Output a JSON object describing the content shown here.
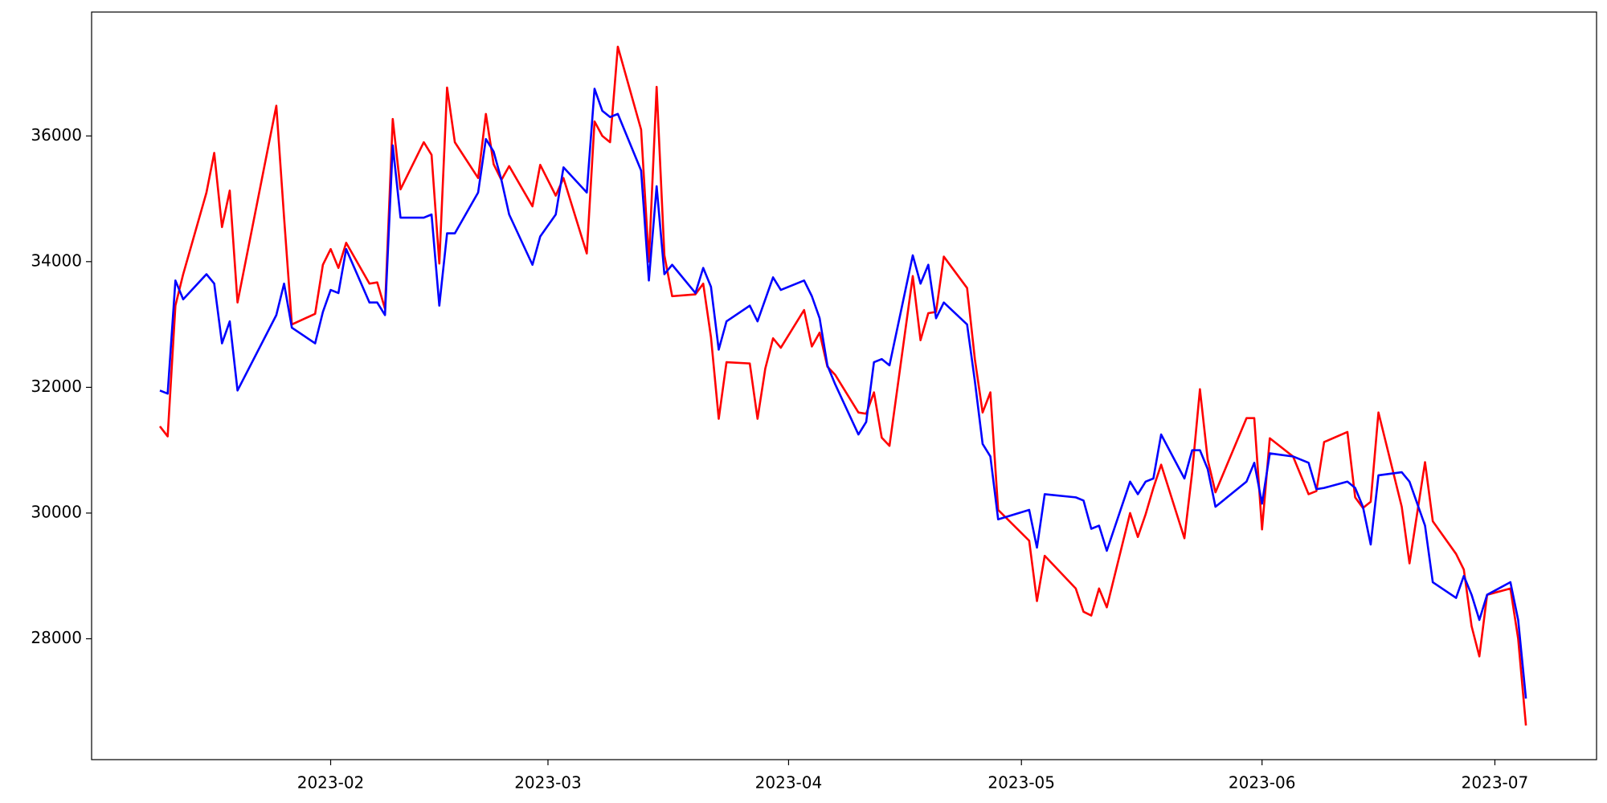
{
  "chart_data": {
    "type": "line",
    "x": [
      19367,
      19368,
      19369,
      19370,
      19373,
      19374,
      19375,
      19376,
      19377,
      19382,
      19383,
      19384,
      19387,
      19388,
      19389,
      19390,
      19391,
      19394,
      19395,
      19396,
      19397,
      19398,
      19401,
      19402,
      19403,
      19404,
      19405,
      19408,
      19409,
      19410,
      19411,
      19412,
      19415,
      19416,
      19418,
      19419,
      19422,
      19423,
      19424,
      19425,
      19426,
      19429,
      19430,
      19431,
      19432,
      19433,
      19436,
      19437,
      19438,
      19439,
      19440,
      19443,
      19444,
      19445,
      19446,
      19447,
      19450,
      19451,
      19452,
      19453,
      19454,
      19457,
      19458,
      19459,
      19460,
      19461,
      19464,
      19465,
      19466,
      19467,
      19468,
      19471,
      19472,
      19473,
      19474,
      19475,
      19479,
      19480,
      19481,
      19485,
      19486,
      19487,
      19488,
      19489,
      19492,
      19493,
      19494,
      19495,
      19496,
      19499,
      19500,
      19501,
      19502,
      19503,
      19507,
      19508,
      19509,
      19510,
      19513,
      19515,
      19516,
      19517,
      19520,
      19521,
      19522,
      19523,
      19524,
      19527,
      19528,
      19530,
      19531,
      19534,
      19535,
      19536,
      19537,
      19538,
      19541,
      19542,
      19543
    ],
    "series": [
      {
        "color": "#ff0000",
        "values": [
          31380,
          31220,
          33300,
          33800,
          35100,
          35730,
          34550,
          35130,
          33350,
          36480,
          34700,
          33000,
          33170,
          33950,
          34200,
          33900,
          34300,
          33650,
          33670,
          33250,
          36270,
          35150,
          35900,
          35700,
          33970,
          36770,
          35900,
          35330,
          36350,
          35550,
          35300,
          35520,
          34880,
          35540,
          35050,
          35330,
          34130,
          36230,
          36000,
          35900,
          37420,
          36100,
          34000,
          36780,
          34100,
          33450,
          33480,
          33650,
          32800,
          31500,
          32400,
          32380,
          31500,
          32300,
          32780,
          32630,
          33230,
          32650,
          32870,
          32330,
          32200,
          31600,
          31580,
          31920,
          31200,
          31070,
          33770,
          32750,
          33180,
          33200,
          34080,
          33580,
          32450,
          31600,
          31920,
          30050,
          29560,
          28600,
          29320,
          28800,
          28430,
          28370,
          28800,
          28500,
          30000,
          29620,
          29980,
          30400,
          30770,
          29600,
          30650,
          31970,
          30850,
          30330,
          31510,
          31510,
          29740,
          31190,
          30900,
          30300,
          30350,
          31130,
          31290,
          30250,
          30080,
          30180,
          31600,
          30100,
          29200,
          30810,
          29870,
          29350,
          29100,
          28200,
          27720,
          28700,
          28800,
          28000,
          26620
        ]
      },
      {
        "color": "#0000ff",
        "values": [
          31950,
          31900,
          33700,
          33400,
          33800,
          33650,
          32700,
          33050,
          31950,
          33150,
          33650,
          32950,
          32700,
          33200,
          33550,
          33500,
          34200,
          33350,
          33350,
          33150,
          35850,
          34700,
          34700,
          34750,
          33300,
          34450,
          34450,
          35100,
          35950,
          35750,
          35300,
          34750,
          33950,
          34400,
          34750,
          35500,
          35100,
          36750,
          36400,
          36300,
          36350,
          35450,
          33700,
          35200,
          33800,
          33950,
          33500,
          33900,
          33600,
          32600,
          33050,
          33300,
          33050,
          33400,
          33750,
          33550,
          33700,
          33450,
          33100,
          32350,
          32050,
          31250,
          31450,
          32400,
          32450,
          32350,
          34100,
          33650,
          33950,
          33100,
          33350,
          33000,
          32100,
          31100,
          30900,
          29900,
          30050,
          29450,
          30300,
          30250,
          30200,
          29750,
          29800,
          29400,
          30500,
          30300,
          30500,
          30550,
          31250,
          30550,
          31000,
          31000,
          30700,
          30100,
          30500,
          30800,
          30150,
          30950,
          30900,
          30800,
          30380,
          30400,
          30500,
          30400,
          30100,
          29500,
          30600,
          30650,
          30500,
          29800,
          28900,
          28650,
          29000,
          28700,
          28300,
          28700,
          28900,
          28300,
          27050
        ]
      }
    ],
    "xlim": [
      19358.2,
      19552.1
    ],
    "xticks": [
      {
        "value": 19389,
        "label": "2023-02"
      },
      {
        "value": 19417,
        "label": "2023-03"
      },
      {
        "value": 19448,
        "label": "2023-04"
      },
      {
        "value": 19478,
        "label": "2023-05"
      },
      {
        "value": 19509,
        "label": "2023-06"
      },
      {
        "value": 19539,
        "label": "2023-07"
      }
    ],
    "ylim": [
      26077,
      37971
    ],
    "yticks": [
      28000,
      30000,
      32000,
      34000,
      36000
    ],
    "grid": false
  }
}
